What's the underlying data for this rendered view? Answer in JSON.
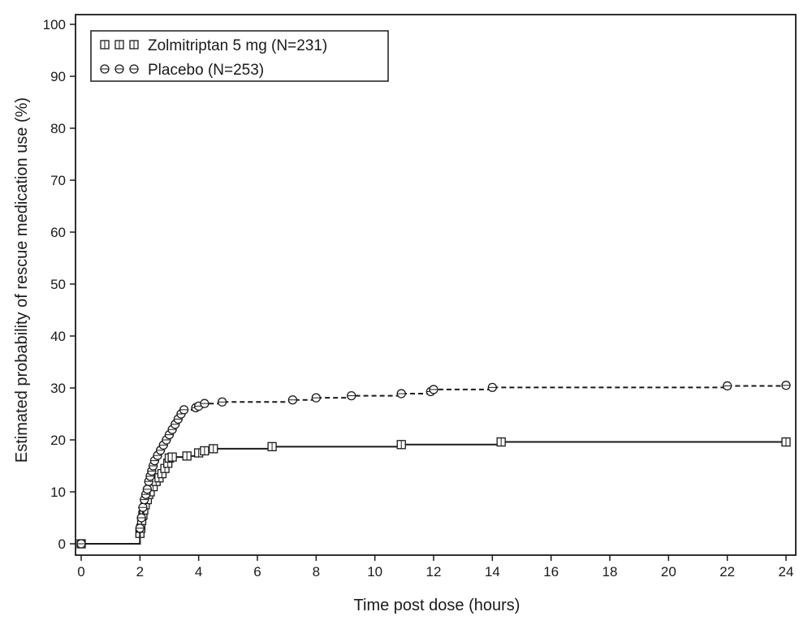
{
  "chart_data": {
    "type": "line",
    "step": true,
    "xlabel": "Time post dose (hours)",
    "ylabel": "Estimated probability of rescue medication use (%)",
    "xlim": [
      0,
      24
    ],
    "ylim": [
      0,
      100
    ],
    "xticks": [
      0,
      2,
      4,
      6,
      8,
      10,
      12,
      14,
      16,
      18,
      20,
      22,
      24
    ],
    "yticks": [
      0,
      10,
      20,
      30,
      40,
      50,
      60,
      70,
      80,
      90,
      100
    ],
    "grid": false,
    "legend_position": "top-left",
    "series": [
      {
        "name": "Zolmitriptan 5 mg (N=231)",
        "marker": "square",
        "line_style": "solid",
        "color": "#1a1a1a",
        "points": [
          [
            0,
            0
          ],
          [
            2.0,
            2.0
          ],
          [
            2.03,
            3.0
          ],
          [
            2.06,
            4.5
          ],
          [
            2.1,
            5.5
          ],
          [
            2.13,
            6.5
          ],
          [
            2.18,
            7.5
          ],
          [
            2.25,
            8.5
          ],
          [
            2.3,
            9.5
          ],
          [
            2.35,
            10.0
          ],
          [
            2.45,
            11.0
          ],
          [
            2.55,
            12.0
          ],
          [
            2.65,
            12.7
          ],
          [
            2.75,
            13.5
          ],
          [
            2.85,
            14.5
          ],
          [
            2.95,
            15.5
          ],
          [
            3.0,
            16.5
          ],
          [
            3.1,
            16.7
          ],
          [
            3.6,
            16.9
          ],
          [
            4.0,
            17.5
          ],
          [
            4.2,
            17.9
          ],
          [
            4.5,
            18.3
          ],
          [
            6.5,
            18.7
          ],
          [
            10.9,
            19.1
          ],
          [
            14.3,
            19.6
          ],
          [
            24.0,
            19.6
          ]
        ]
      },
      {
        "name": "Placebo (N=253)",
        "marker": "circle",
        "line_style": "dashed",
        "color": "#1a1a1a",
        "points": [
          [
            0,
            0
          ],
          [
            2.0,
            3.0
          ],
          [
            2.05,
            5.0
          ],
          [
            2.1,
            7.0
          ],
          [
            2.15,
            8.5
          ],
          [
            2.2,
            9.5
          ],
          [
            2.25,
            10.5
          ],
          [
            2.3,
            12.0
          ],
          [
            2.35,
            13.0
          ],
          [
            2.4,
            14.0
          ],
          [
            2.45,
            15.0
          ],
          [
            2.5,
            16.0
          ],
          [
            2.6,
            17.0
          ],
          [
            2.7,
            18.0
          ],
          [
            2.8,
            19.0
          ],
          [
            2.9,
            20.0
          ],
          [
            3.0,
            21.0
          ],
          [
            3.1,
            22.0
          ],
          [
            3.2,
            23.0
          ],
          [
            3.3,
            24.0
          ],
          [
            3.4,
            25.0
          ],
          [
            3.5,
            25.8
          ],
          [
            3.9,
            26.2
          ],
          [
            4.0,
            26.5
          ],
          [
            4.2,
            27.0
          ],
          [
            4.8,
            27.3
          ],
          [
            7.2,
            27.7
          ],
          [
            8.0,
            28.1
          ],
          [
            9.2,
            28.5
          ],
          [
            10.9,
            28.9
          ],
          [
            11.9,
            29.3
          ],
          [
            12.0,
            29.7
          ],
          [
            14.0,
            30.1
          ],
          [
            22.0,
            30.4
          ],
          [
            24.0,
            30.5
          ]
        ]
      }
    ]
  }
}
